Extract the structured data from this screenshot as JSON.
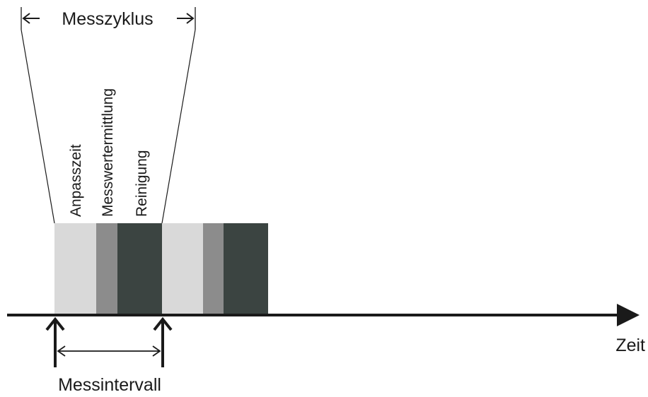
{
  "cycle_label": "Messzyklus",
  "interval_label": "Messintervall",
  "axis_label": "Zeit",
  "phases": [
    {
      "label": "Anpasszeit"
    },
    {
      "label": "Messwertermittlung"
    },
    {
      "label": "Reinigung"
    }
  ],
  "colors": {
    "adjustment": "#d9d9d9",
    "measurement": "#8c8c8c",
    "cleaning": "#3b4441",
    "line": "#1a1a1a"
  }
}
